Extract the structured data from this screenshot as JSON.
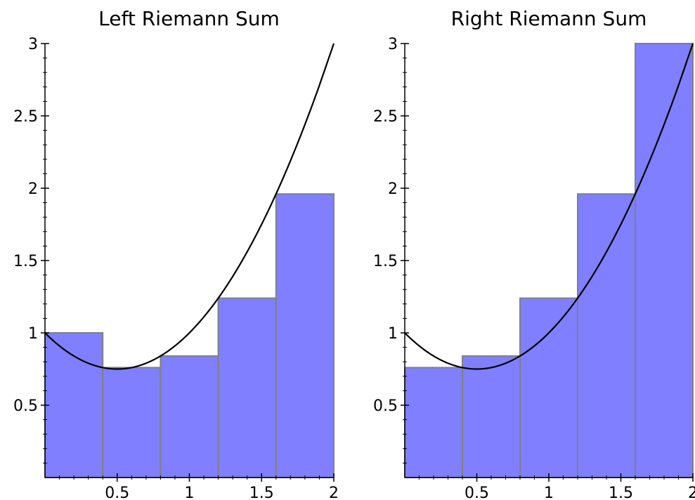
{
  "colors": {
    "bar_fill": "#7f7fff",
    "bar_edge": "#808080",
    "curve": "#000000",
    "axis": "#000000"
  },
  "chart_data": [
    {
      "type": "bar",
      "title": "Left Riemann Sum",
      "xlabel": "",
      "ylabel": "",
      "xlim": [
        0,
        2
      ],
      "ylim": [
        0,
        3
      ],
      "x_ticks": [
        0.5,
        1,
        1.5,
        2
      ],
      "x_tick_labels": [
        "0.5",
        "1",
        "1.5",
        "2"
      ],
      "y_ticks": [
        0.5,
        1,
        1.5,
        2,
        2.5,
        3
      ],
      "y_tick_labels": [
        "0.5",
        "1",
        "1.5",
        "2",
        "2.5",
        "3"
      ],
      "bins": [
        [
          0,
          0.4
        ],
        [
          0.4,
          0.8
        ],
        [
          0.8,
          1.2
        ],
        [
          1.2,
          1.6
        ],
        [
          1.6,
          2
        ]
      ],
      "values": [
        1.0,
        0.76,
        0.84,
        1.24,
        1.96
      ],
      "curve": {
        "x": [
          0,
          0.1,
          0.2,
          0.3,
          0.4,
          0.5,
          0.6,
          0.7,
          0.8,
          0.9,
          1.0,
          1.1,
          1.2,
          1.3,
          1.4,
          1.5,
          1.6,
          1.7,
          1.8,
          1.9,
          2.0
        ],
        "y": [
          1.0,
          0.91,
          0.84,
          0.79,
          0.76,
          0.75,
          0.76,
          0.79,
          0.84,
          0.91,
          1.0,
          1.11,
          1.24,
          1.39,
          1.56,
          1.75,
          1.96,
          2.19,
          2.44,
          2.71,
          3.0
        ]
      },
      "grid": false
    },
    {
      "type": "bar",
      "title": "Right Riemann Sum",
      "xlabel": "",
      "ylabel": "",
      "xlim": [
        0,
        2
      ],
      "ylim": [
        0,
        3
      ],
      "x_ticks": [
        0.5,
        1,
        1.5,
        2
      ],
      "x_tick_labels": [
        "0.5",
        "1",
        "1.5",
        "2"
      ],
      "y_ticks": [
        0.5,
        1,
        1.5,
        2,
        2.5,
        3
      ],
      "y_tick_labels": [
        "0.5",
        "1",
        "1.5",
        "2",
        "2.5",
        "3"
      ],
      "bins": [
        [
          0,
          0.4
        ],
        [
          0.4,
          0.8
        ],
        [
          0.8,
          1.2
        ],
        [
          1.2,
          1.6
        ],
        [
          1.6,
          2
        ]
      ],
      "values": [
        0.76,
        0.84,
        1.24,
        1.96,
        3.0
      ],
      "curve": {
        "x": [
          0,
          0.1,
          0.2,
          0.3,
          0.4,
          0.5,
          0.6,
          0.7,
          0.8,
          0.9,
          1.0,
          1.1,
          1.2,
          1.3,
          1.4,
          1.5,
          1.6,
          1.7,
          1.8,
          1.9,
          2.0
        ],
        "y": [
          1.0,
          0.91,
          0.84,
          0.79,
          0.76,
          0.75,
          0.76,
          0.79,
          0.84,
          0.91,
          1.0,
          1.11,
          1.24,
          1.39,
          1.56,
          1.75,
          1.96,
          2.19,
          2.44,
          2.71,
          3.0
        ]
      },
      "grid": false
    }
  ]
}
